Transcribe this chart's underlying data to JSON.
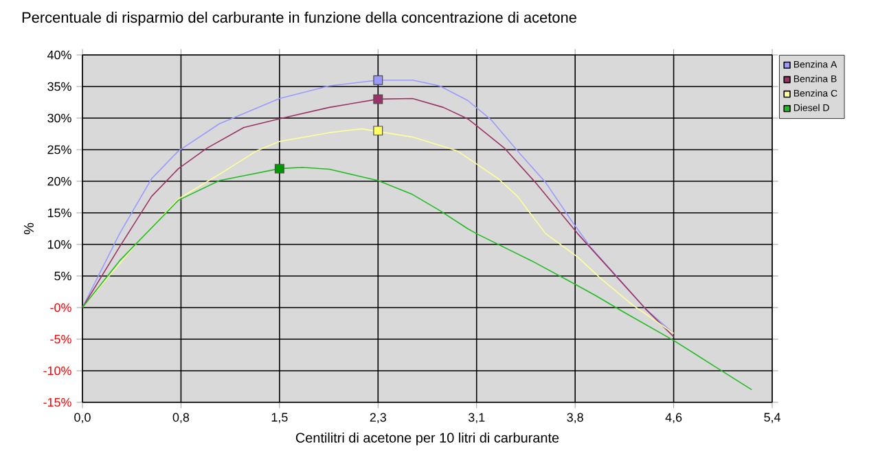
{
  "chart_data": {
    "type": "line",
    "title": "Percentuale di risparmio del carburante in funzione della concentrazione di acetone",
    "xlabel": "Centilitri di acetone per 10 litri di carburante",
    "ylabel": "%",
    "xlim": [
      0,
      5.39
    ],
    "ylim": [
      -15,
      40
    ],
    "xticks": [
      {
        "value": 0,
        "label": "0,0"
      },
      {
        "value": 0.77,
        "label": "0,8"
      },
      {
        "value": 1.54,
        "label": "1,5"
      },
      {
        "value": 2.31,
        "label": "2,3"
      },
      {
        "value": 3.08,
        "label": "3,1"
      },
      {
        "value": 3.85,
        "label": "3,8"
      },
      {
        "value": 4.62,
        "label": "4,6"
      },
      {
        "value": 5.39,
        "label": "5,4"
      }
    ],
    "yticks": [
      {
        "value": -15,
        "label": "-15%"
      },
      {
        "value": -10,
        "label": "-10%"
      },
      {
        "value": -5,
        "label": "-5%"
      },
      {
        "value": 0,
        "label": "-0%"
      },
      {
        "value": 5,
        "label": "5%"
      },
      {
        "value": 10,
        "label": "10%"
      },
      {
        "value": 15,
        "label": "15%"
      },
      {
        "value": 20,
        "label": "20%"
      },
      {
        "value": 25,
        "label": "25%"
      },
      {
        "value": 30,
        "label": "30%"
      },
      {
        "value": 35,
        "label": "35%"
      },
      {
        "value": 40,
        "label": "40%"
      }
    ],
    "grid": true,
    "legend": "top right",
    "line_style": "solid",
    "series": [
      {
        "name": "Benzina A",
        "color": "#9999ff",
        "x": [
          0,
          0.29,
          0.54,
          0.75,
          1.07,
          1.54,
          1.93,
          2.31,
          2.58,
          2.79,
          3.01,
          3.19,
          3.4,
          3.62,
          3.83,
          3.97,
          4.19,
          4.4,
          4.62
        ],
        "values": [
          0,
          11.7,
          20.4,
          24.8,
          29.1,
          33.1,
          35.1,
          36,
          36,
          35.1,
          32.8,
          29.8,
          24.8,
          19.8,
          13.5,
          9.6,
          4.6,
          -0.2,
          -4.1
        ]
      },
      {
        "name": "Benzina B",
        "color": "#993366",
        "x": [
          0,
          0.29,
          0.54,
          0.75,
          0.97,
          1.26,
          1.54,
          1.93,
          2.31,
          2.58,
          2.82,
          3.01,
          3.08,
          3.3,
          3.54,
          3.87,
          4.16,
          4.4,
          4.62
        ],
        "values": [
          0,
          9.6,
          17.6,
          22,
          25.2,
          28.5,
          29.9,
          31.7,
          33,
          33.1,
          31.7,
          29.9,
          28.8,
          25.2,
          19.8,
          11.7,
          5.2,
          -0.2,
          -4.6
        ]
      },
      {
        "name": "Benzina C",
        "color": "#ffff99",
        "x": [
          0,
          0.43,
          0.75,
          1.07,
          1.36,
          1.54,
          1.93,
          2.18,
          2.58,
          2.93,
          3.25,
          3.4,
          3.62,
          3.87,
          4.05,
          4.3,
          4.62
        ],
        "values": [
          0,
          10.3,
          17.2,
          21.1,
          24.8,
          26.3,
          27.7,
          28.3,
          27,
          24.8,
          20.4,
          17.6,
          11.7,
          8,
          4.6,
          0.4,
          -4.1
        ]
      },
      {
        "name": "Diesel D",
        "color": "#22bb22",
        "x": [
          0,
          0.29,
          0.75,
          1.07,
          1.54,
          1.72,
          1.93,
          2.31,
          2.58,
          2.79,
          3.01,
          3.08,
          3.51,
          3.84,
          4.01,
          4.22,
          4.62,
          4.94,
          5.23
        ],
        "values": [
          0,
          7.4,
          17,
          20.1,
          22,
          22.2,
          21.9,
          20.1,
          17.9,
          15.4,
          12.5,
          11.7,
          7.4,
          3.8,
          1.9,
          -0.6,
          -5.2,
          -9.3,
          -13
        ]
      },
      {
        "type": "scatter",
        "marker": "square",
        "color": "#9999ff",
        "x": [
          2.31
        ],
        "values": [
          36
        ]
      },
      {
        "type": "scatter",
        "marker": "square",
        "color": "#993366",
        "x": [
          2.31
        ],
        "values": [
          33
        ]
      },
      {
        "type": "scatter",
        "marker": "square",
        "color": "#ffff66",
        "x": [
          2.31
        ],
        "values": [
          28
        ]
      },
      {
        "type": "scatter",
        "marker": "square",
        "color": "#009900",
        "x": [
          1.54
        ],
        "values": [
          22
        ]
      }
    ]
  }
}
